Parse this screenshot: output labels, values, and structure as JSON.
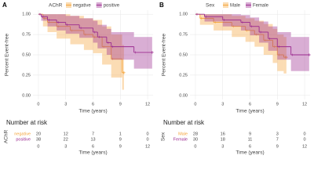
{
  "chart_data": [
    {
      "type": "step",
      "panel": "A",
      "legend_title": "AChR",
      "xlabel": "Time (years)",
      "ylabel": "Percent Event-free",
      "xlim": [
        -0.6,
        12.6
      ],
      "ylim": [
        -0.05,
        1.05
      ],
      "xticks": [
        0,
        3,
        6,
        9,
        12
      ],
      "yticks": [
        {
          "value": 0,
          "label": "0.00"
        },
        {
          "value": 0.25,
          "label": "0.25"
        },
        {
          "value": 0.5,
          "label": "0.50"
        },
        {
          "value": 0.75,
          "label": "0.75"
        },
        {
          "value": 1,
          "label": "1.00"
        }
      ],
      "grid": true,
      "series": [
        {
          "name": "negative",
          "color": "#f4a43a",
          "x": [
            0,
            0.5,
            1,
            2,
            3.5,
            5,
            6,
            7,
            8,
            9.2,
            9.4
          ],
          "values": [
            1,
            0.95,
            0.9,
            0.85,
            0.8,
            0.75,
            0.72,
            0.6,
            0.45,
            0.28,
            0.28
          ],
          "lower": [
            1,
            0.85,
            0.78,
            0.7,
            0.63,
            0.56,
            0.52,
            0.38,
            0.22,
            0.07,
            0.07
          ],
          "upper": [
            1,
            1,
            1,
            1,
            0.98,
            0.95,
            0.93,
            0.85,
            0.75,
            0.62,
            0.62
          ]
        },
        {
          "name": "positive",
          "color": "#9b2a8f",
          "x": [
            0,
            0.3,
            1,
            2,
            3,
            4.5,
            6,
            6.5,
            7.5,
            8,
            10.5,
            12.5
          ],
          "values": [
            1,
            0.97,
            0.93,
            0.9,
            0.87,
            0.83,
            0.78,
            0.72,
            0.65,
            0.6,
            0.53,
            0.53
          ],
          "lower": [
            1,
            0.92,
            0.85,
            0.8,
            0.76,
            0.71,
            0.65,
            0.58,
            0.5,
            0.44,
            0.33,
            0.33
          ],
          "upper": [
            1,
            1,
            1,
            1,
            0.98,
            0.95,
            0.92,
            0.87,
            0.82,
            0.78,
            0.72,
            0.72
          ]
        }
      ],
      "risk_table": {
        "title": "Number at risk",
        "ylabel": "AChR",
        "xlabel": "Time (years)",
        "rows": [
          {
            "name": "negative",
            "color": "#f4a43a",
            "values": [
              20,
              12,
              7,
              1,
              0
            ]
          },
          {
            "name": "positive",
            "color": "#9b2a8f",
            "values": [
              38,
              22,
              13,
              9,
              0
            ]
          }
        ]
      }
    },
    {
      "type": "step",
      "panel": "B",
      "legend_title": "Sex",
      "xlabel": "Time (years)",
      "ylabel": "Percent Event-free",
      "xlim": [
        -0.6,
        12.6
      ],
      "ylim": [
        -0.05,
        1.05
      ],
      "xticks": [
        0,
        3,
        6,
        9,
        12
      ],
      "yticks": [
        {
          "value": 0,
          "label": "0.00"
        },
        {
          "value": 0.25,
          "label": "0.25"
        },
        {
          "value": 0.5,
          "label": "0.50"
        },
        {
          "value": 0.75,
          "label": "0.75"
        },
        {
          "value": 1,
          "label": "1.00"
        }
      ],
      "grid": true,
      "series": [
        {
          "name": "Male",
          "color": "#f4a43a",
          "x": [
            0,
            0.5,
            2,
            4,
            5.5,
            6.5,
            7.5,
            8.5,
            9,
            9.7,
            10
          ],
          "values": [
            1,
            0.95,
            0.9,
            0.85,
            0.8,
            0.75,
            0.68,
            0.6,
            0.5,
            0.47,
            0.47
          ],
          "lower": [
            1,
            0.87,
            0.8,
            0.72,
            0.66,
            0.6,
            0.5,
            0.4,
            0.3,
            0.27,
            0.27
          ],
          "upper": [
            1,
            1,
            1,
            0.98,
            0.95,
            0.92,
            0.88,
            0.82,
            0.75,
            0.72,
            0.72
          ]
        },
        {
          "name": "Female",
          "color": "#9b2a8f",
          "x": [
            0,
            1,
            3,
            5,
            6,
            7,
            8,
            9,
            10.5,
            12.5
          ],
          "values": [
            1,
            0.97,
            0.93,
            0.9,
            0.85,
            0.78,
            0.7,
            0.6,
            0.5,
            0.5
          ],
          "lower": [
            1,
            0.91,
            0.85,
            0.8,
            0.74,
            0.65,
            0.55,
            0.44,
            0.3,
            0.3
          ],
          "upper": [
            1,
            1,
            1,
            0.99,
            0.96,
            0.91,
            0.85,
            0.78,
            0.72,
            0.72
          ]
        }
      ],
      "risk_table": {
        "title": "Number at risk",
        "ylabel": "Sex",
        "xlabel": "Time (years)",
        "rows": [
          {
            "name": "Male",
            "color": "#f4a43a",
            "values": [
              28,
              16,
              9,
              3,
              0
            ]
          },
          {
            "name": "Female",
            "color": "#9b2a8f",
            "values": [
              30,
              18,
              11,
              7,
              0
            ]
          }
        ]
      }
    }
  ]
}
